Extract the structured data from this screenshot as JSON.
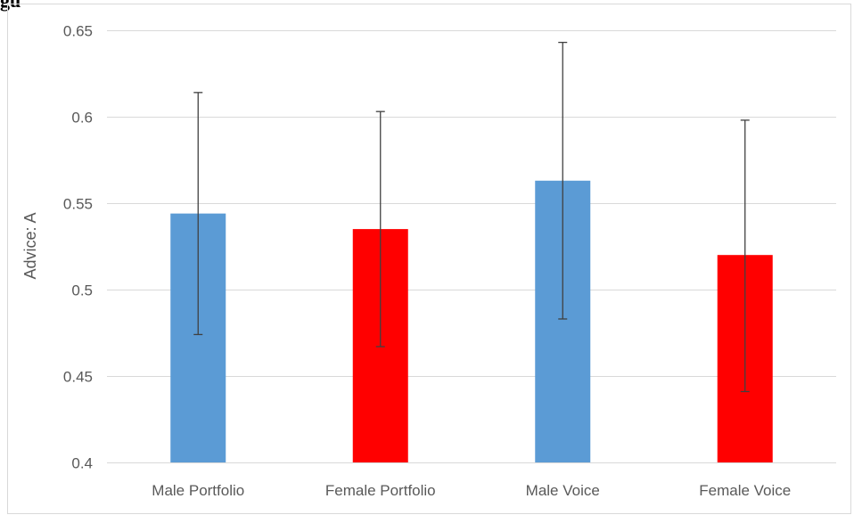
{
  "header_fragment": "gu",
  "chart_data": {
    "type": "bar",
    "categories": [
      "Male Portfolio",
      "Female Portfolio",
      "Male Voice",
      "Female Voice"
    ],
    "values": [
      0.544,
      0.535,
      0.563,
      0.52
    ],
    "error_low": [
      0.474,
      0.467,
      0.483,
      0.441
    ],
    "error_high": [
      0.614,
      0.603,
      0.643,
      0.598
    ],
    "bar_colors": [
      "#5b9bd5",
      "#ff0000",
      "#5b9bd5",
      "#ff0000"
    ],
    "title": "",
    "xlabel": "",
    "ylabel": "Advice: A",
    "ylim": [
      0.4,
      0.65
    ],
    "yticks": [
      0.4,
      0.45,
      0.5,
      0.55,
      0.6,
      0.65
    ],
    "ytick_labels": [
      "0.4",
      "0.45",
      "0.5",
      "0.55",
      "0.6",
      "0.65"
    ],
    "grid": true,
    "legend": "none"
  }
}
